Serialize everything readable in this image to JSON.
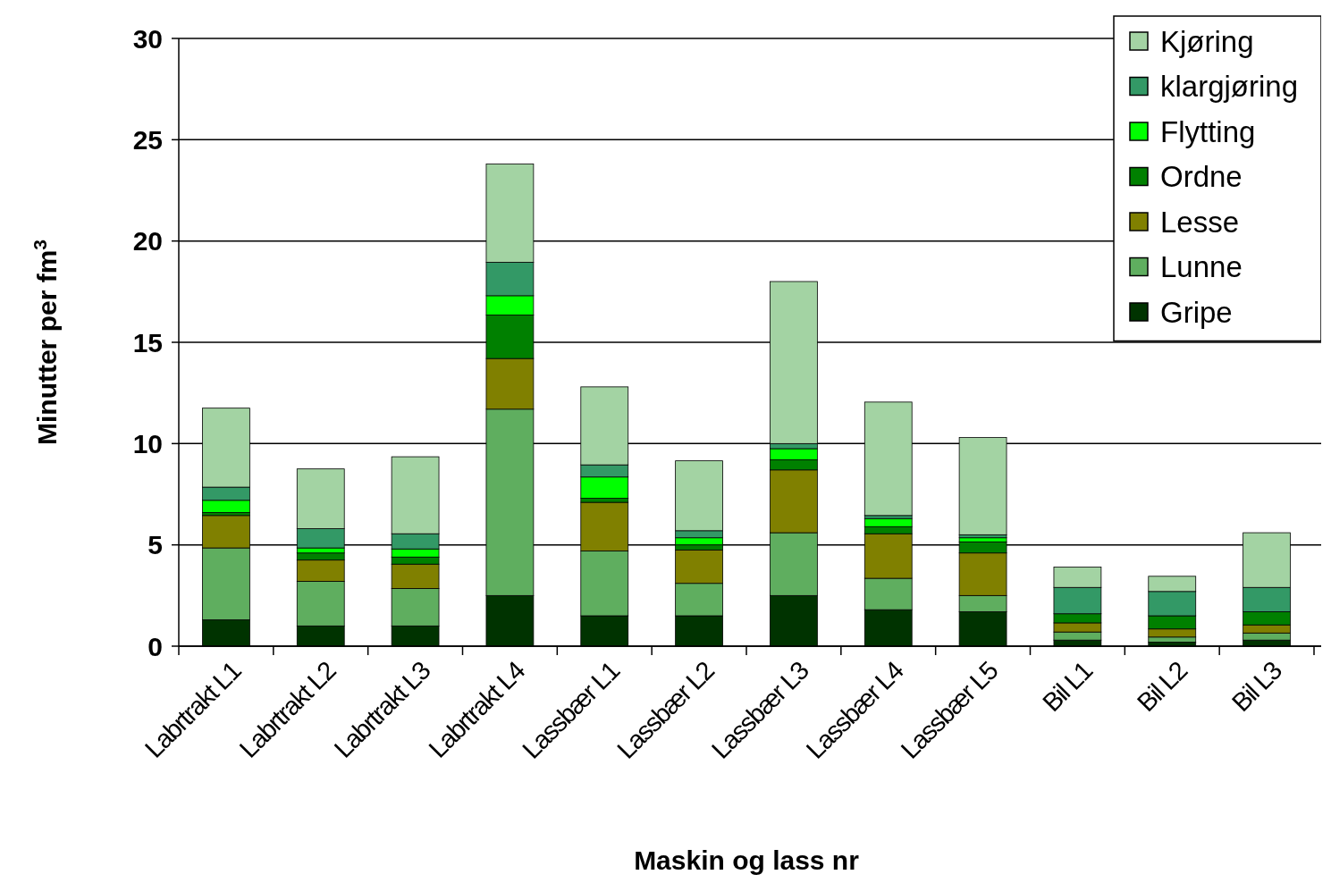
{
  "chart_data": {
    "type": "bar",
    "stacked": true,
    "xlabel": "Maskin og lass nr",
    "ylabel": "Minutter per fm$^{3}$",
    "categories": [
      "Labrtrakt L1",
      "Labrtrakt L2",
      "Labrtrakt L3",
      "Labrtrakt L4",
      "Lassbær L1",
      "Lassbær L2",
      "Lassbær L3",
      "Lassbær L4",
      "Lassbær L5",
      "Bil L1",
      "Bil L2",
      "Bil L3"
    ],
    "series": [
      {
        "name": "Gripe",
        "color": "#003300",
        "values": [
          1.3,
          1.0,
          1.0,
          2.5,
          1.5,
          1.5,
          2.5,
          1.8,
          1.7,
          0.3,
          0.2,
          0.3
        ]
      },
      {
        "name": "Lunne",
        "color": "#5fae5f",
        "values": [
          3.55,
          2.2,
          1.85,
          9.2,
          3.2,
          1.6,
          3.1,
          1.55,
          0.8,
          0.4,
          0.25,
          0.35
        ]
      },
      {
        "name": "Lesse",
        "color": "#808000",
        "values": [
          1.6,
          1.05,
          1.2,
          2.5,
          2.4,
          1.65,
          3.1,
          2.2,
          2.1,
          0.45,
          0.4,
          0.4
        ]
      },
      {
        "name": "Ordne",
        "color": "#008000",
        "values": [
          0.15,
          0.35,
          0.35,
          2.15,
          0.2,
          0.25,
          0.5,
          0.35,
          0.55,
          0.45,
          0.65,
          0.65
        ]
      },
      {
        "name": "Flytting",
        "color": "#00ff00",
        "values": [
          0.6,
          0.25,
          0.4,
          0.95,
          1.05,
          0.35,
          0.55,
          0.4,
          0.2,
          0,
          0,
          0
        ]
      },
      {
        "name": "klargjøring",
        "color": "#339966",
        "values": [
          0.65,
          0.95,
          0.75,
          1.65,
          0.6,
          0.35,
          0.25,
          0.15,
          0.15,
          1.3,
          1.2,
          1.2
        ]
      },
      {
        "name": "Kjøring",
        "color": "#a3d3a3",
        "values": [
          3.9,
          2.95,
          3.8,
          4.85,
          3.85,
          3.45,
          8.0,
          5.6,
          4.8,
          1.0,
          0.75,
          2.7
        ]
      }
    ],
    "ylim": [
      0,
      30
    ],
    "yticks": [
      0,
      5,
      10,
      15,
      20,
      25,
      30
    ],
    "grid": "y",
    "legend": "top right"
  }
}
